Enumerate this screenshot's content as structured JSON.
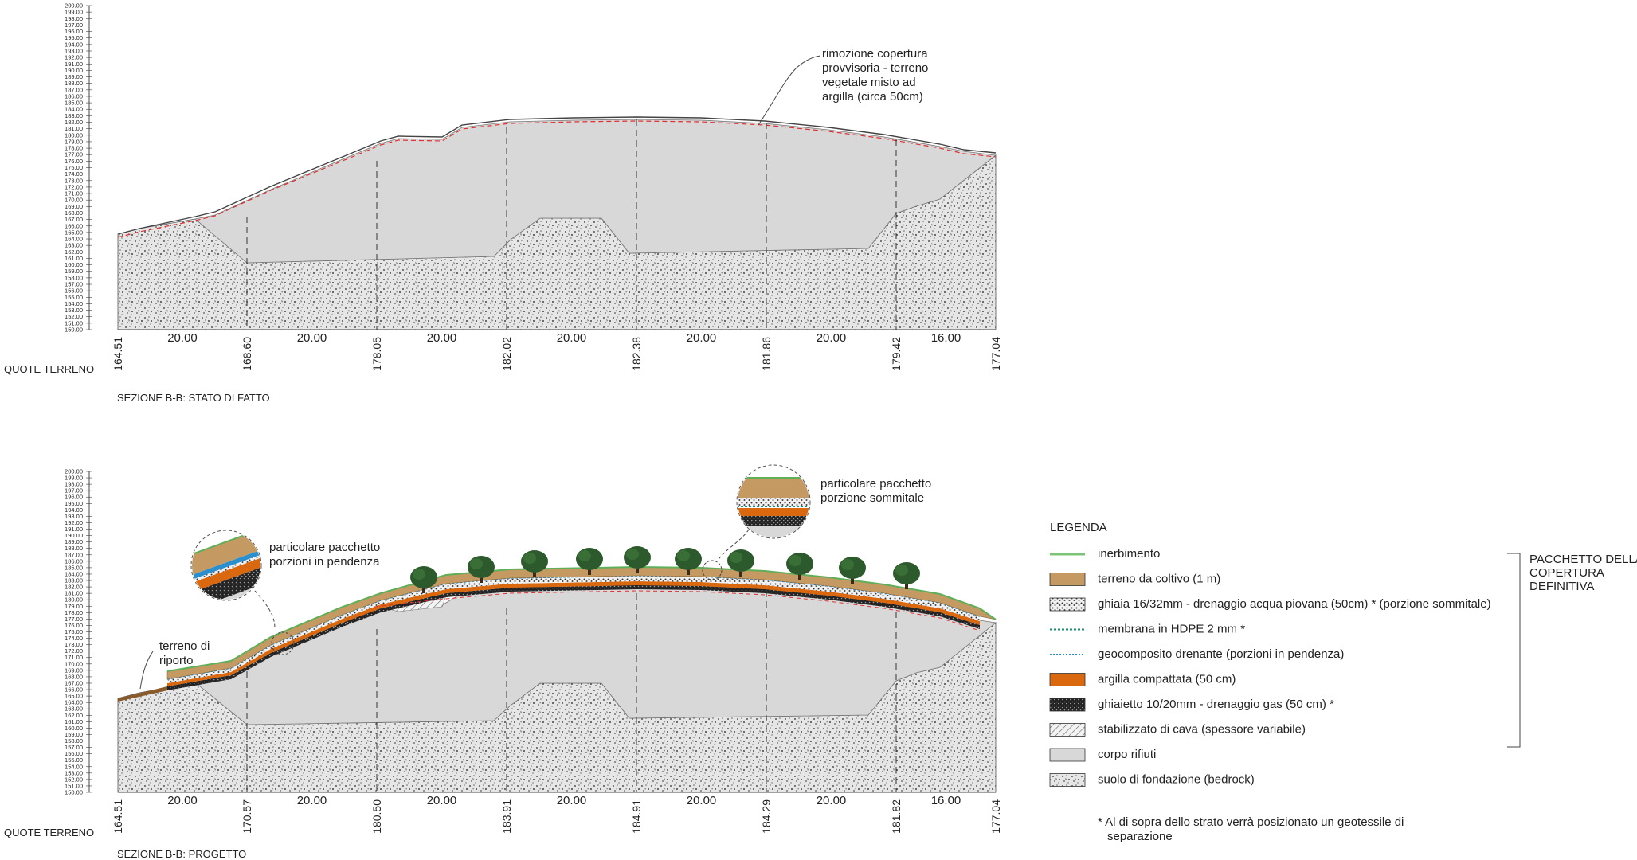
{
  "upper": {
    "title": "SEZIONE B-B: STATO DI FATTO",
    "row_label": "QUOTE TERRENO",
    "distances": [
      "20.00",
      "20.00",
      "20.00",
      "20.00",
      "20.00",
      "20.00",
      "16.00"
    ],
    "elevations": [
      "164.51",
      "168.60",
      "178.05",
      "182.02",
      "182.38",
      "181.86",
      "179.42",
      "177.04"
    ],
    "annotation": [
      "rimozione copertura",
      "provvisoria - terreno",
      "vegetale misto ad",
      "argilla (circa 50cm)"
    ]
  },
  "lower": {
    "title": "SEZIONE B-B: PROGETTO",
    "row_label": "QUOTE TERRENO",
    "distances": [
      "20.00",
      "20.00",
      "20.00",
      "20.00",
      "20.00",
      "20.00",
      "16.00"
    ],
    "elevations": [
      "164.51",
      "170.57",
      "180.50",
      "183.91",
      "184.91",
      "184.29",
      "181.82",
      "177.04"
    ],
    "callout_slope": [
      "particolare pacchetto",
      "porzioni in pendenza"
    ],
    "callout_top": [
      "particolare pacchetto",
      "porzione sommitale"
    ],
    "fill_label": [
      "terreno di",
      "riporto"
    ]
  },
  "axis": {
    "min": 150,
    "max": 200,
    "labels": [
      "200.00",
      "199.00",
      "198.00",
      "197.00",
      "196.00",
      "195.00",
      "194.00",
      "193.00",
      "192.00",
      "191.00",
      "190.00",
      "189.00",
      "188.00",
      "187.00",
      "186.00",
      "185.00",
      "184.00",
      "183.00",
      "182.00",
      "181.00",
      "180.00",
      "179.00",
      "178.00",
      "177.00",
      "176.00",
      "175.00",
      "174.00",
      "173.00",
      "172.00",
      "171.00",
      "170.00",
      "169.00",
      "168.00",
      "167.00",
      "166.00",
      "165.00",
      "164.00",
      "163.00",
      "162.00",
      "161.00",
      "160.00",
      "159.00",
      "158.00",
      "157.00",
      "156.00",
      "155.00",
      "154.00",
      "153.00",
      "152.00",
      "151.00",
      "150.00"
    ]
  },
  "legend": {
    "title": "LEGENDA",
    "items": [
      {
        "label": "inerbimento",
        "swatch": "line",
        "color": "#7cc576"
      },
      {
        "label": "terreno da coltivo (1 m)",
        "swatch": "fill",
        "color": "#c49a62"
      },
      {
        "label": "ghiaia 16/32mm - drenaggio acqua piovana (50cm) * (porzione sommitale)",
        "swatch": "gravel",
        "color": "#555555"
      },
      {
        "label": "membrana in HDPE 2 mm *",
        "swatch": "dash",
        "color": "#1e8f6e"
      },
      {
        "label": "geocomposito drenante (porzioni in pendenza)",
        "swatch": "dot",
        "color": "#2a8fcf"
      },
      {
        "label": "argilla compattata (50 cm)",
        "swatch": "fill",
        "color": "#d9680f"
      },
      {
        "label": "ghiaietto 10/20mm - drenaggio gas (50 cm) *",
        "swatch": "dark",
        "color": "#222222"
      },
      {
        "label": "stabilizzato di cava (spessore variabile)",
        "swatch": "hatch",
        "color": "#777777"
      },
      {
        "label": "corpo rifiuti",
        "swatch": "fill",
        "color": "#d8d8d8"
      },
      {
        "label": "suolo di fondazione (bedrock)",
        "swatch": "rock",
        "color": "#bbbbbb"
      }
    ],
    "bracket_label": [
      "PACCHETTO DELLA",
      "COPERTURA",
      "DEFINITIVA"
    ],
    "note": [
      "* Al di sopra dello strato verrà posizionato un geotessile di",
      "separazione"
    ]
  }
}
